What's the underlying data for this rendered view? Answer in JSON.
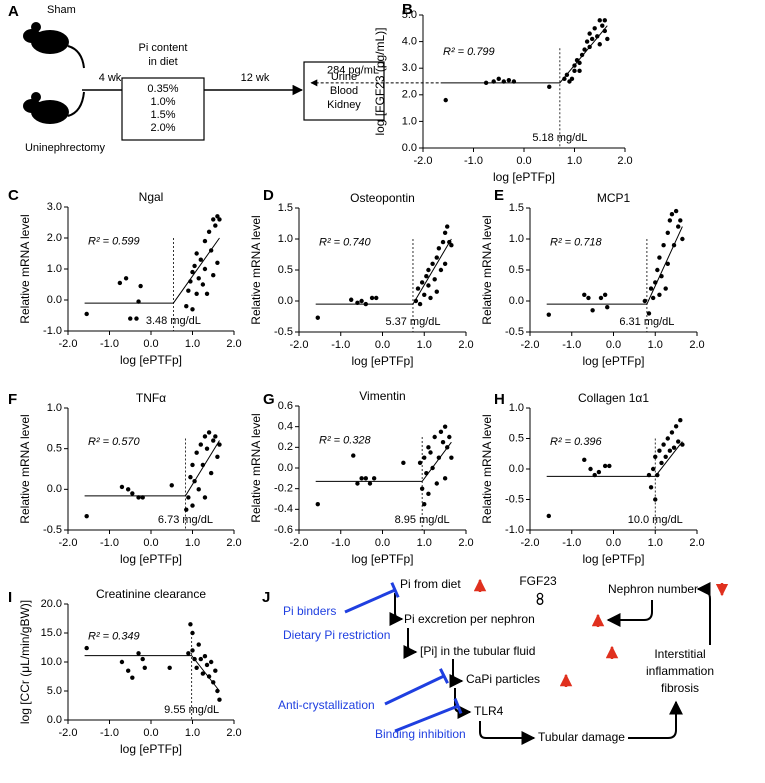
{
  "panel_a": {
    "label": "A",
    "groups": [
      "Sham",
      "Uninephrectomy"
    ],
    "diet_title": [
      "Pi content",
      "in diet"
    ],
    "period_1": "4 wk",
    "diets": [
      "0.35%",
      "1.0%",
      "1.5%",
      "2.0%"
    ],
    "period_2": "12 wk",
    "samples": [
      "Urine",
      "Blood",
      "Kidney"
    ]
  },
  "panel_j": {
    "label": "J",
    "nodes": [
      "Pi from diet",
      "FGF23",
      "Nephron number",
      "Pi excretion per nephron",
      "[Pi] in the tubular fluid",
      "CaPi particles",
      "TLR4",
      "Tubular damage"
    ],
    "fibrosis": [
      "Interstitial",
      "inflammation",
      "fibrosis"
    ],
    "interventions": [
      "Pi binders",
      "Dietary Pi restriction",
      "Anti-crystallization",
      "Binding inhibition"
    ]
  },
  "chart_data": [
    {
      "type": "scatter",
      "label": "B",
      "x_label": "log [ePTFp]",
      "y_label": "log [FGF23 (pg/mL)]",
      "r2_label": "R² = 0.799",
      "threshold_label": "5.18 mg/dL",
      "threshold_x": 0.71,
      "arrow_label": "284 pg/mL",
      "color": "#000000",
      "xlim": [
        -2,
        2
      ],
      "xticks": [
        {
          "value": -2,
          "label": "-2.0"
        },
        {
          "value": -1,
          "label": "-1.0"
        },
        {
          "value": 0,
          "label": "0.0"
        },
        {
          "value": 1,
          "label": "1.0"
        },
        {
          "value": 2,
          "label": "2.0"
        }
      ],
      "ylim": [
        0,
        5
      ],
      "yticks": [
        {
          "value": 0,
          "label": "0.0"
        },
        {
          "value": 1,
          "label": "1.0"
        },
        {
          "value": 2,
          "label": "2.0"
        },
        {
          "value": 3,
          "label": "3.0"
        },
        {
          "value": 4,
          "label": "4.0"
        },
        {
          "value": 5,
          "label": "5.0"
        }
      ],
      "x": [
        -1.55,
        -0.75,
        -0.6,
        -0.5,
        -0.4,
        -0.3,
        -0.2,
        0.5,
        0.8,
        0.85,
        0.9,
        0.95,
        1.0,
        1.0,
        1.05,
        1.1,
        1.1,
        1.15,
        1.2,
        1.25,
        1.3,
        1.3,
        1.35,
        1.4,
        1.45,
        1.5,
        1.5,
        1.55,
        1.6,
        1.6,
        1.65
      ],
      "values": [
        1.8,
        2.45,
        2.5,
        2.6,
        2.5,
        2.55,
        2.5,
        2.3,
        2.6,
        2.75,
        2.5,
        2.6,
        3.1,
        2.9,
        3.3,
        3.2,
        2.9,
        3.5,
        3.7,
        4.0,
        3.8,
        4.3,
        4.1,
        4.5,
        4.2,
        4.8,
        3.9,
        4.6,
        4.4,
        4.8,
        4.1
      ],
      "fit": {
        "x": [
          -1.65,
          0.71,
          1.65
        ],
        "y": [
          2.45,
          2.45,
          4.6
        ]
      }
    },
    {
      "type": "scatter",
      "label": "C",
      "title": "Ngal",
      "x_label": "log [ePTFp]",
      "y_label": "Relative mRNA level",
      "r2_label": "R² = 0.599",
      "threshold_label": "3.48 mg/dL",
      "threshold_x": 0.54,
      "color": "#000000",
      "xlim": [
        -2,
        2
      ],
      "xticks": [
        {
          "value": -2,
          "label": "-2.0"
        },
        {
          "value": -1,
          "label": "-1.0"
        },
        {
          "value": 0,
          "label": "0.0"
        },
        {
          "value": 1,
          "label": "1.0"
        },
        {
          "value": 2,
          "label": "2.0"
        }
      ],
      "ylim": [
        -1,
        3
      ],
      "yticks": [
        {
          "value": -1,
          "label": "-1.0"
        },
        {
          "value": 0,
          "label": "0.0"
        },
        {
          "value": 1,
          "label": "1.0"
        },
        {
          "value": 2,
          "label": "2.0"
        },
        {
          "value": 3,
          "label": "3.0"
        }
      ],
      "x": [
        -1.55,
        -0.75,
        -0.6,
        -0.5,
        -0.35,
        -0.3,
        -0.25,
        0.85,
        0.9,
        0.95,
        1.0,
        1.0,
        1.05,
        1.1,
        1.1,
        1.15,
        1.2,
        1.25,
        1.3,
        1.3,
        1.35,
        1.4,
        1.45,
        1.5,
        1.5,
        1.55,
        1.6,
        1.6,
        1.65
      ],
      "values": [
        -0.45,
        0.55,
        0.7,
        -0.6,
        -0.6,
        -0.05,
        0.45,
        -0.2,
        0.3,
        0.6,
        -0.3,
        0.9,
        1.1,
        0.2,
        1.5,
        0.7,
        1.3,
        0.5,
        1.9,
        1.0,
        0.2,
        2.2,
        1.6,
        2.6,
        0.8,
        2.4,
        2.7,
        1.2,
        2.6
      ],
      "fit": {
        "x": [
          -1.6,
          0.54,
          1.65
        ],
        "y": [
          -0.1,
          -0.1,
          2.0
        ]
      }
    },
    {
      "type": "scatter",
      "label": "D",
      "title": "Osteopontin",
      "x_label": "log [ePTFp]",
      "y_label": "Relative mRNA level",
      "r2_label": "R² = 0.740",
      "threshold_label": "5.37 mg/dL",
      "threshold_x": 0.73,
      "color": "#000000",
      "xlim": [
        -2,
        2
      ],
      "xticks": [
        {
          "value": -2,
          "label": "-2.0"
        },
        {
          "value": -1,
          "label": "-1.0"
        },
        {
          "value": 0,
          "label": "0.0"
        },
        {
          "value": 1,
          "label": "1.0"
        },
        {
          "value": 2,
          "label": "2.0"
        }
      ],
      "ylim": [
        -0.5,
        1.5
      ],
      "yticks": [
        {
          "value": -0.5,
          "label": "-0.5"
        },
        {
          "value": 0,
          "label": "0.0"
        },
        {
          "value": 0.5,
          "label": "0.5"
        },
        {
          "value": 1,
          "label": "1.0"
        },
        {
          "value": 1.5,
          "label": "1.5"
        }
      ],
      "x": [
        -1.55,
        -0.75,
        -0.6,
        -0.5,
        -0.4,
        -0.25,
        -0.15,
        0.8,
        0.85,
        0.9,
        0.95,
        1.0,
        1.05,
        1.1,
        1.1,
        1.15,
        1.2,
        1.25,
        1.3,
        1.3,
        1.35,
        1.4,
        1.45,
        1.5,
        1.5,
        1.55,
        1.6,
        1.65
      ],
      "values": [
        -0.27,
        0.02,
        -0.03,
        0.0,
        -0.05,
        0.05,
        0.05,
        0.0,
        0.2,
        -0.05,
        0.3,
        0.1,
        0.4,
        0.25,
        0.5,
        0.05,
        0.6,
        0.35,
        0.7,
        0.15,
        0.85,
        0.5,
        0.95,
        1.1,
        0.6,
        1.2,
        0.95,
        0.9
      ],
      "fit": {
        "x": [
          -1.6,
          0.73,
          1.65
        ],
        "y": [
          -0.05,
          -0.05,
          1.0
        ]
      }
    },
    {
      "type": "scatter",
      "label": "E",
      "title": "MCP1",
      "x_label": "log [ePTFp]",
      "y_label": "Relative mRNA level",
      "r2_label": "R² = 0.718",
      "threshold_label": "6.31 mg/dL",
      "threshold_x": 0.8,
      "color": "#000000",
      "xlim": [
        -2,
        2
      ],
      "xticks": [
        {
          "value": -2,
          "label": "-2.0"
        },
        {
          "value": -1,
          "label": "-1.0"
        },
        {
          "value": 0,
          "label": "0.0"
        },
        {
          "value": 1,
          "label": "1.0"
        },
        {
          "value": 2,
          "label": "2.0"
        }
      ],
      "ylim": [
        -0.5,
        1.5
      ],
      "yticks": [
        {
          "value": -0.5,
          "label": "-0.5"
        },
        {
          "value": 0,
          "label": "0.0"
        },
        {
          "value": 0.5,
          "label": "0.5"
        },
        {
          "value": 1,
          "label": "1.0"
        },
        {
          "value": 1.5,
          "label": "1.5"
        }
      ],
      "x": [
        -1.55,
        -0.7,
        -0.6,
        -0.5,
        -0.3,
        -0.2,
        -0.15,
        0.75,
        0.85,
        0.9,
        0.95,
        1.0,
        1.05,
        1.1,
        1.1,
        1.15,
        1.2,
        1.25,
        1.3,
        1.3,
        1.35,
        1.4,
        1.45,
        1.5,
        1.55,
        1.6,
        1.65
      ],
      "values": [
        -0.22,
        0.1,
        0.05,
        -0.15,
        0.05,
        0.1,
        -0.1,
        0.0,
        -0.2,
        0.2,
        0.05,
        0.3,
        0.5,
        0.1,
        0.7,
        0.4,
        0.9,
        0.2,
        1.1,
        0.6,
        1.3,
        1.4,
        0.9,
        1.45,
        1.2,
        1.3,
        1.0
      ],
      "fit": {
        "x": [
          -1.6,
          0.8,
          1.65
        ],
        "y": [
          -0.05,
          -0.05,
          1.2
        ]
      }
    },
    {
      "type": "scatter",
      "label": "F",
      "title": "TNFα",
      "x_label": "log [ePTFp]",
      "y_label": "Relative mRNA level",
      "r2_label": "R² = 0.570",
      "threshold_label": "6.73 mg/dL",
      "threshold_x": 0.83,
      "color": "#000000",
      "xlim": [
        -2,
        2
      ],
      "xticks": [
        {
          "value": -2,
          "label": "-2.0"
        },
        {
          "value": -1,
          "label": "-1.0"
        },
        {
          "value": 0,
          "label": "0.0"
        },
        {
          "value": 1,
          "label": "1.0"
        },
        {
          "value": 2,
          "label": "2.0"
        }
      ],
      "ylim": [
        -0.5,
        1
      ],
      "yticks": [
        {
          "value": -0.5,
          "label": "-0.5"
        },
        {
          "value": 0,
          "label": "0.0"
        },
        {
          "value": 0.5,
          "label": "0.5"
        },
        {
          "value": 1,
          "label": "1.0"
        }
      ],
      "x": [
        -1.55,
        -0.7,
        -0.55,
        -0.45,
        -0.3,
        -0.2,
        0.5,
        0.85,
        0.9,
        0.95,
        1.0,
        1.0,
        1.05,
        1.1,
        1.15,
        1.2,
        1.25,
        1.3,
        1.3,
        1.35,
        1.4,
        1.45,
        1.5,
        1.55,
        1.6,
        1.65
      ],
      "values": [
        -0.33,
        0.03,
        0.0,
        -0.05,
        -0.1,
        -0.1,
        0.05,
        -0.25,
        -0.1,
        0.15,
        -0.2,
        0.3,
        0.1,
        0.45,
        0.0,
        0.55,
        0.3,
        0.65,
        -0.1,
        0.5,
        0.7,
        0.2,
        0.6,
        0.65,
        0.4,
        0.55
      ],
      "fit": {
        "x": [
          -1.6,
          0.83,
          1.65
        ],
        "y": [
          -0.08,
          -0.08,
          0.6
        ]
      }
    },
    {
      "type": "scatter",
      "label": "G",
      "title": "Vimentin",
      "x_label": "log [ePTFp]",
      "y_label": "Relative mRNA level",
      "r2_label": "R² = 0.328",
      "threshold_label": "8.95 mg/dL",
      "threshold_x": 0.95,
      "color": "#000000",
      "xlim": [
        -2,
        2
      ],
      "xticks": [
        {
          "value": -2,
          "label": "-2.0"
        },
        {
          "value": -1,
          "label": "-1.0"
        },
        {
          "value": 0,
          "label": "0.0"
        },
        {
          "value": 1,
          "label": "1.0"
        },
        {
          "value": 2,
          "label": "2.0"
        }
      ],
      "ylim": [
        -0.6,
        0.6
      ],
      "yticks": [
        {
          "value": -0.6,
          "label": "-0.6"
        },
        {
          "value": -0.4,
          "label": "-0.4"
        },
        {
          "value": -0.2,
          "label": "-0.2"
        },
        {
          "value": 0,
          "label": "0.0"
        },
        {
          "value": 0.2,
          "label": "0.2"
        },
        {
          "value": 0.4,
          "label": "0.4"
        },
        {
          "value": 0.6,
          "label": "0.6"
        }
      ],
      "x": [
        -1.55,
        -0.7,
        -0.6,
        -0.5,
        -0.4,
        -0.3,
        -0.2,
        0.5,
        0.9,
        0.95,
        1.0,
        1.0,
        1.05,
        1.1,
        1.1,
        1.15,
        1.2,
        1.25,
        1.3,
        1.35,
        1.4,
        1.45,
        1.5,
        1.5,
        1.55,
        1.6,
        1.65
      ],
      "values": [
        -0.35,
        0.12,
        -0.15,
        -0.1,
        -0.1,
        -0.15,
        -0.1,
        0.05,
        0.05,
        -0.2,
        -0.35,
        0.1,
        -0.05,
        0.2,
        -0.25,
        0.15,
        0.0,
        0.3,
        -0.15,
        0.1,
        0.35,
        0.25,
        -0.1,
        0.4,
        0.2,
        0.3,
        0.1
      ],
      "fit": {
        "x": [
          -1.6,
          0.95,
          1.65
        ],
        "y": [
          -0.13,
          -0.13,
          0.25
        ]
      }
    },
    {
      "type": "scatter",
      "label": "H",
      "title": "Collagen 1α1",
      "x_label": "log [ePTFp]",
      "y_label": "Relative mRNA level",
      "r2_label": "R² = 0.396",
      "threshold_label": "10.0 mg/dL",
      "threshold_x": 1.0,
      "color": "#000000",
      "xlim": [
        -2,
        2
      ],
      "xticks": [
        {
          "value": -2,
          "label": "-2.0"
        },
        {
          "value": -1,
          "label": "-1.0"
        },
        {
          "value": 0,
          "label": "0.0"
        },
        {
          "value": 1,
          "label": "1.0"
        },
        {
          "value": 2,
          "label": "2.0"
        }
      ],
      "ylim": [
        -1,
        1
      ],
      "yticks": [
        {
          "value": -1,
          "label": "-1.0"
        },
        {
          "value": -0.5,
          "label": "-0.5"
        },
        {
          "value": 0,
          "label": "0.0"
        },
        {
          "value": 0.5,
          "label": "0.5"
        },
        {
          "value": 1,
          "label": "1.0"
        }
      ],
      "x": [
        -1.55,
        -0.7,
        -0.55,
        -0.45,
        -0.35,
        -0.2,
        -0.1,
        0.85,
        0.9,
        0.95,
        1.0,
        1.0,
        1.05,
        1.1,
        1.15,
        1.2,
        1.25,
        1.3,
        1.35,
        1.4,
        1.45,
        1.5,
        1.55,
        1.6,
        1.65
      ],
      "values": [
        -0.77,
        0.15,
        0.0,
        -0.1,
        -0.05,
        0.05,
        0.05,
        -0.1,
        -0.3,
        0.0,
        -0.5,
        0.2,
        -0.1,
        0.3,
        0.1,
        0.4,
        0.2,
        0.5,
        0.3,
        0.6,
        0.35,
        0.7,
        0.45,
        0.8,
        0.4
      ],
      "fit": {
        "x": [
          -1.6,
          1.0,
          1.65
        ],
        "y": [
          -0.12,
          -0.12,
          0.45
        ]
      }
    },
    {
      "type": "scatter",
      "label": "I",
      "title": "Creatinine clearance",
      "x_label": "log [ePTFp]",
      "y_label": "log [CCr (μL/min/gBW)]",
      "r2_label": "R² = 0.349",
      "threshold_label": "9.55 mg/dL",
      "threshold_x": 0.98,
      "color": "#000000",
      "xlim": [
        -2,
        2
      ],
      "xticks": [
        {
          "value": -2,
          "label": "-2.0"
        },
        {
          "value": -1,
          "label": "-1.0"
        },
        {
          "value": 0,
          "label": "0.0"
        },
        {
          "value": 1,
          "label": "1.0"
        },
        {
          "value": 2,
          "label": "2.0"
        }
      ],
      "ylim": [
        0,
        20
      ],
      "yticks": [
        {
          "value": 0,
          "label": "0.0"
        },
        {
          "value": 5,
          "label": "5.0"
        },
        {
          "value": 10,
          "label": "10.0"
        },
        {
          "value": 15,
          "label": "15.0"
        },
        {
          "value": 20,
          "label": "20.0"
        }
      ],
      "x": [
        -1.55,
        -0.7,
        -0.55,
        -0.45,
        -0.3,
        -0.2,
        -0.15,
        0.45,
        0.9,
        0.95,
        1.0,
        1.0,
        1.05,
        1.1,
        1.15,
        1.2,
        1.25,
        1.3,
        1.35,
        1.4,
        1.45,
        1.5,
        1.55,
        1.6,
        1.65
      ],
      "values": [
        12.4,
        10.0,
        8.5,
        7.3,
        11.5,
        10.5,
        9.0,
        9.0,
        11.5,
        16.5,
        15.0,
        12.0,
        10.5,
        9.0,
        13.0,
        10.5,
        8.0,
        11.0,
        9.5,
        7.5,
        10.0,
        6.5,
        8.5,
        5.0,
        3.5
      ],
      "fit": {
        "x": [
          -1.6,
          0.98,
          1.65
        ],
        "y": [
          11.1,
          11.1,
          5.0
        ]
      }
    }
  ]
}
